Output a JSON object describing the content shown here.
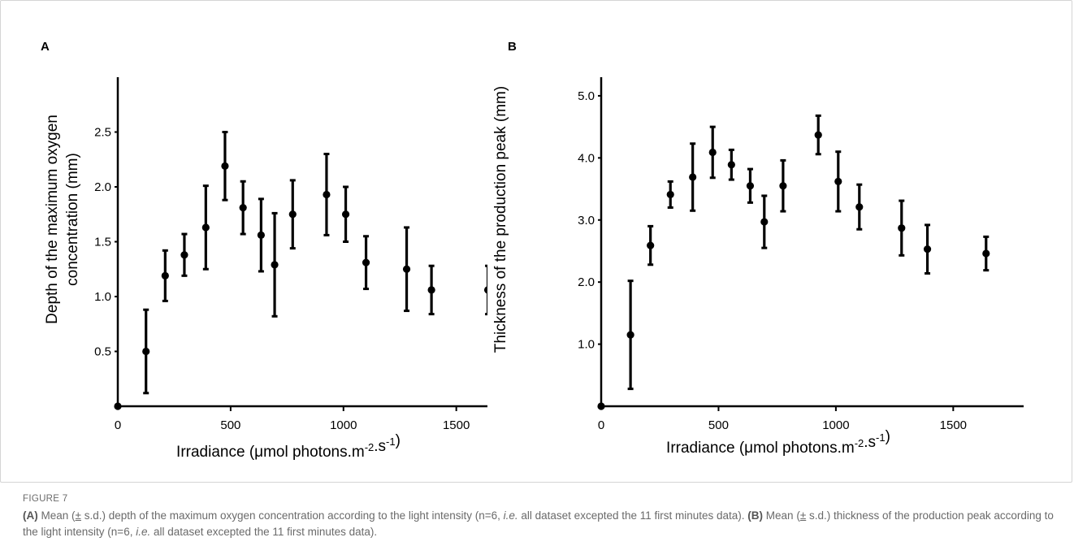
{
  "figure": {
    "label": "FIGURE 7",
    "caption": {
      "a_tag": "(A)",
      "a_pre": " Mean (",
      "pm": "±",
      "a_mid": " s.d.) depth of the maximum oxygen concentration according to the light intensity (n=6, ",
      "ie": "i.e.",
      "a_post": " all dataset excepted the 11 first minutes data). ",
      "b_tag": "(B)",
      "b_pre": " Mean (",
      "b_mid": " s.d.) thickness of the production peak according to the light intensity (n=6, ",
      "b_post": " all dataset excepted the 11 first minutes data)."
    }
  },
  "chart_data": [
    {
      "panel": "A",
      "type": "scatter",
      "error_bars": true,
      "title": "",
      "xlabel": "Irradiance (μmol photons.m-2.s-1)",
      "ylabel_lines": [
        "Depth of the maximum oxygen",
        "concentration (mm)"
      ],
      "xlim": [
        0,
        1800
      ],
      "ylim": [
        0,
        3.0
      ],
      "x_ticks": [
        0,
        500,
        1000,
        1500
      ],
      "x_tick_labels": [
        "0",
        "500",
        "1000",
        "1500"
      ],
      "y_ticks": [
        0.5,
        1.0,
        1.5,
        2.0,
        2.5
      ],
      "y_tick_labels": [
        "0.5",
        "1.0",
        "1.5",
        "2.0",
        "2.5"
      ],
      "grid": false,
      "points": [
        {
          "x": 0,
          "y": 0,
          "sd": 0
        },
        {
          "x": 125,
          "y": 0.5,
          "sd": 0.38
        },
        {
          "x": 210,
          "y": 1.19,
          "sd": 0.23
        },
        {
          "x": 295,
          "y": 1.38,
          "sd": 0.19
        },
        {
          "x": 390,
          "y": 1.63,
          "sd": 0.38
        },
        {
          "x": 475,
          "y": 2.19,
          "sd": 0.31
        },
        {
          "x": 555,
          "y": 1.81,
          "sd": 0.24
        },
        {
          "x": 635,
          "y": 1.56,
          "sd": 0.33
        },
        {
          "x": 695,
          "y": 1.29,
          "sd": 0.47
        },
        {
          "x": 775,
          "y": 1.75,
          "sd": 0.31
        },
        {
          "x": 925,
          "y": 1.93,
          "sd": 0.37
        },
        {
          "x": 1010,
          "y": 1.75,
          "sd": 0.25
        },
        {
          "x": 1100,
          "y": 1.31,
          "sd": 0.24
        },
        {
          "x": 1280,
          "y": 1.25,
          "sd": 0.38
        },
        {
          "x": 1390,
          "y": 1.06,
          "sd": 0.22
        },
        {
          "x": 1640,
          "y": 1.06,
          "sd": 0.22
        }
      ]
    },
    {
      "panel": "B",
      "type": "scatter",
      "error_bars": true,
      "title": "",
      "xlabel": "Irradiance (μmol photons.m-2.s-1)",
      "ylabel_lines": [
        "Thickness of the production peak (mm)"
      ],
      "xlim": [
        0,
        1800
      ],
      "ylim": [
        0,
        5.3
      ],
      "x_ticks": [
        0,
        500,
        1000,
        1500
      ],
      "x_tick_labels": [
        "0",
        "500",
        "1000",
        "1500"
      ],
      "y_ticks": [
        1.0,
        2.0,
        3.0,
        4.0,
        5.0
      ],
      "y_tick_labels": [
        "1.0",
        "2.0",
        "3.0",
        "4.0",
        "5.0"
      ],
      "grid": false,
      "points": [
        {
          "x": 0,
          "y": 0,
          "sd": 0
        },
        {
          "x": 125,
          "y": 1.15,
          "sd": 0.87
        },
        {
          "x": 210,
          "y": 2.59,
          "sd": 0.31
        },
        {
          "x": 295,
          "y": 3.41,
          "sd": 0.21
        },
        {
          "x": 390,
          "y": 3.69,
          "sd": 0.54
        },
        {
          "x": 475,
          "y": 4.09,
          "sd": 0.41
        },
        {
          "x": 555,
          "y": 3.89,
          "sd": 0.24
        },
        {
          "x": 635,
          "y": 3.55,
          "sd": 0.27
        },
        {
          "x": 695,
          "y": 2.97,
          "sd": 0.42
        },
        {
          "x": 775,
          "y": 3.55,
          "sd": 0.41
        },
        {
          "x": 925,
          "y": 4.37,
          "sd": 0.31
        },
        {
          "x": 1010,
          "y": 3.62,
          "sd": 0.48
        },
        {
          "x": 1100,
          "y": 3.21,
          "sd": 0.36
        },
        {
          "x": 1280,
          "y": 2.87,
          "sd": 0.44
        },
        {
          "x": 1390,
          "y": 2.53,
          "sd": 0.39
        },
        {
          "x": 1640,
          "y": 2.46,
          "sd": 0.27
        }
      ]
    }
  ]
}
